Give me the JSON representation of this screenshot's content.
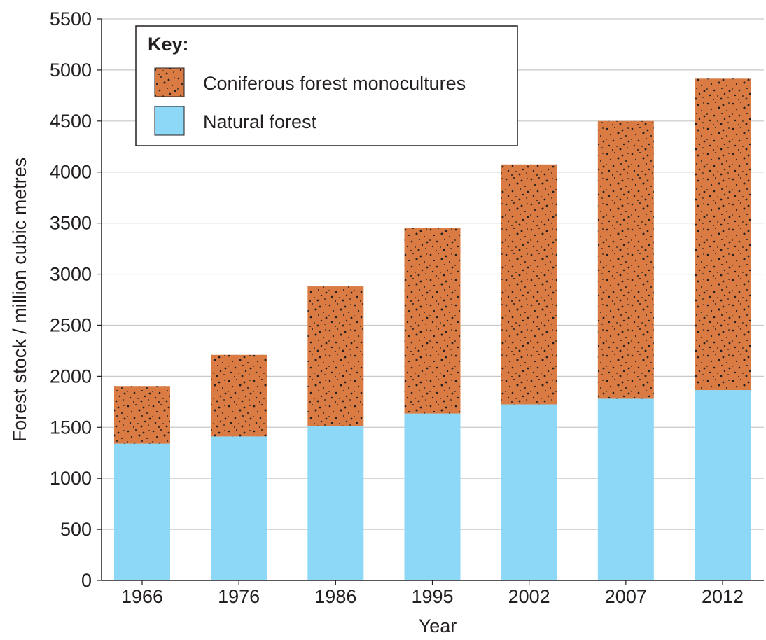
{
  "chart_data": {
    "type": "bar",
    "stacked": true,
    "categories": [
      "1966",
      "1976",
      "1986",
      "1995",
      "2002",
      "2007",
      "2012"
    ],
    "series": [
      {
        "name": "Natural forest",
        "color": "#8dd8f6",
        "values": [
          1340,
          1410,
          1510,
          1635,
          1725,
          1780,
          1865
        ]
      },
      {
        "name": "Coniferous forest monocultures",
        "color": "#d97b42",
        "pattern": "dotted",
        "values": [
          565,
          800,
          1370,
          1815,
          2350,
          2720,
          3050
        ]
      }
    ],
    "title": "",
    "xlabel": "Year",
    "ylabel": "Forest stock / million cubic metres",
    "ylim": [
      0,
      5500
    ],
    "yticks": [
      0,
      500,
      1000,
      1500,
      2000,
      2500,
      3000,
      3500,
      4000,
      4500,
      5000,
      5500
    ],
    "grid": true,
    "legend": {
      "title": "Key:",
      "placement": "top-left"
    }
  }
}
